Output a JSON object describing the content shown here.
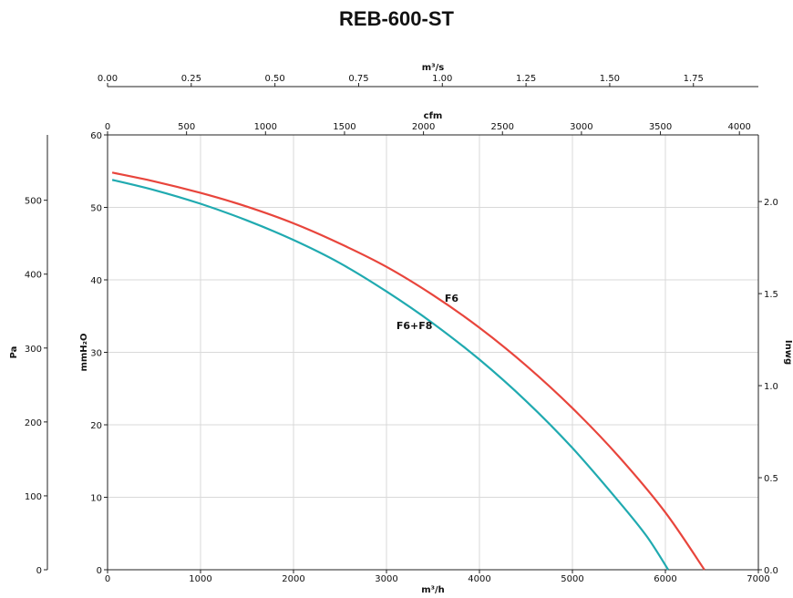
{
  "chart_data": {
    "type": "line",
    "title": "REB-600-ST",
    "grid": true,
    "axes": {
      "bottom": {
        "label": "m³/h",
        "min": 0,
        "max": 7000,
        "ticks": [
          "0",
          "1000",
          "2000",
          "3000",
          "4000",
          "5000",
          "6000",
          "7000"
        ]
      },
      "top_cfm": {
        "label": "cfm",
        "min": 0,
        "max": 4120,
        "ticks": [
          "0",
          "500",
          "1000",
          "1500",
          "2000",
          "2500",
          "3000",
          "3500",
          "4000"
        ]
      },
      "top_m3s": {
        "label": "m³/s",
        "min": 0,
        "max": 1.944,
        "ticks": [
          "0.00",
          "0.25",
          "0.50",
          "0.75",
          "1.00",
          "1.25",
          "1.50",
          "1.75"
        ]
      },
      "left_mmh2o": {
        "label": "mmH₂O",
        "min": 0,
        "max": 60,
        "ticks": [
          "0",
          "10",
          "20",
          "30",
          "40",
          "50",
          "60"
        ]
      },
      "left_pa": {
        "label": "Pa",
        "min": 0,
        "max": 588.4,
        "ticks": [
          "0",
          "100",
          "200",
          "300",
          "400",
          "500"
        ]
      },
      "right_inwg": {
        "label": "Inwg",
        "min": 0,
        "max": 2.362,
        "ticks": [
          "0.0",
          "0.5",
          "1.0",
          "1.5",
          "2.0"
        ]
      }
    },
    "series": [
      {
        "name": "F6",
        "color": "#e8453c",
        "x": [
          50,
          500,
          1000,
          1500,
          2000,
          2500,
          3000,
          3500,
          4000,
          4500,
          5000,
          5500,
          6000,
          6420
        ],
        "y": [
          54.8,
          53.6,
          52.0,
          50.1,
          47.8,
          45.0,
          41.8,
          37.9,
          33.4,
          28.2,
          22.3,
          15.6,
          7.9,
          0
        ]
      },
      {
        "name": "F6+F8",
        "color": "#20aab0",
        "x": [
          50,
          500,
          1000,
          1500,
          2000,
          2500,
          3000,
          3500,
          4000,
          4500,
          5000,
          5500,
          5800,
          6030
        ],
        "y": [
          53.8,
          52.4,
          50.5,
          48.2,
          45.5,
          42.3,
          38.4,
          34.0,
          29.0,
          23.3,
          16.8,
          9.4,
          4.6,
          0
        ]
      }
    ]
  }
}
